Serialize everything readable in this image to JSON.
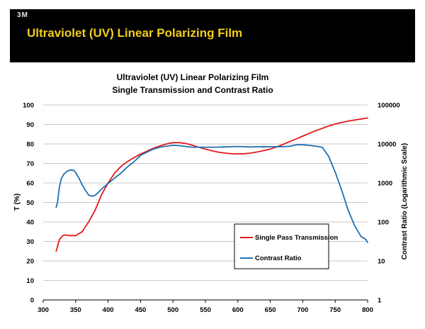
{
  "header": {
    "logo_text": "3M",
    "title": "Ultraviolet (UV) Linear Polarizing Film"
  },
  "colors": {
    "header_bg": "#000000",
    "header_title": "#f2cf1b",
    "transmission": "#e31a1c",
    "contrast": "#1f6fb2",
    "grid": "#c8c8c8"
  },
  "chart_data": {
    "type": "line",
    "title": "Ultraviolet (UV) Linear Polarizing Film",
    "subtitle": "Single Transmission and Contrast Ratio",
    "xlabel": "",
    "ylabel": "T (%)",
    "y2label": "Contrast Ratio (Logarithmic Scale)",
    "xlim": [
      300,
      800
    ],
    "ylim": [
      0,
      100
    ],
    "y2lim": [
      1,
      100000
    ],
    "y2scale": "log",
    "grid": "horizontal",
    "xticks": [
      "300",
      "350",
      "400",
      "450",
      "500",
      "550",
      "600",
      "650",
      "700",
      "750",
      "800"
    ],
    "yticks": [
      "0",
      "10",
      "20",
      "30",
      "40",
      "50",
      "60",
      "70",
      "80",
      "90",
      "100"
    ],
    "y2ticks": [
      "1",
      "10",
      "100",
      "1000",
      "10000",
      "100000"
    ],
    "legend_position": "lower-right",
    "series": [
      {
        "name": "Single Pass Transmission",
        "axis": "left",
        "color": "#e31a1c",
        "x": [
          320,
          325,
          330,
          335,
          340,
          350,
          360,
          370,
          380,
          390,
          400,
          410,
          420,
          430,
          440,
          450,
          460,
          470,
          480,
          490,
          500,
          510,
          520,
          530,
          540,
          550,
          560,
          570,
          580,
          590,
          600,
          610,
          620,
          630,
          640,
          650,
          660,
          670,
          680,
          690,
          700,
          710,
          720,
          730,
          740,
          750,
          760,
          770,
          780,
          790,
          800
        ],
        "values": [
          25,
          31,
          33,
          33.3,
          33,
          33,
          35,
          40,
          46,
          54,
          60,
          65,
          68.5,
          71,
          73,
          74.8,
          76.3,
          77.8,
          79,
          80,
          80.7,
          80.7,
          80.2,
          79.3,
          78.3,
          77.3,
          76.5,
          75.8,
          75.3,
          75,
          74.9,
          75,
          75.3,
          75.9,
          76.6,
          77.4,
          78.5,
          79.8,
          81.2,
          82.6,
          84,
          85.4,
          86.8,
          88,
          89.2,
          90.2,
          91,
          91.7,
          92.3,
          92.8,
          93.3
        ]
      },
      {
        "name": "Contrast Ratio",
        "axis": "right",
        "color": "#1f6fb2",
        "x": [
          320,
          322,
          325,
          328,
          332,
          337,
          342,
          347,
          350,
          355,
          360,
          365,
          370,
          375,
          380,
          385,
          390,
          400,
          410,
          420,
          430,
          440,
          450,
          460,
          470,
          480,
          490,
          500,
          510,
          520,
          530,
          540,
          550,
          560,
          570,
          580,
          590,
          600,
          610,
          620,
          630,
          640,
          650,
          660,
          670,
          680,
          690,
          700,
          710,
          720,
          730,
          740,
          750,
          760,
          770,
          780,
          790,
          797,
          800
        ],
        "values": [
          237,
          316,
          800,
          1300,
          1700,
          2000,
          2150,
          2100,
          1850,
          1330,
          900,
          650,
          490,
          455,
          480,
          570,
          700,
          970,
          1330,
          1800,
          2600,
          3500,
          5100,
          6200,
          7400,
          8300,
          8800,
          9200,
          9000,
          8600,
          8250,
          8250,
          8250,
          8250,
          8300,
          8400,
          8500,
          8600,
          8500,
          8350,
          8500,
          8400,
          8500,
          8500,
          8500,
          8700,
          9500,
          9500,
          9200,
          8800,
          8200,
          4800,
          1900,
          650,
          200,
          80,
          42,
          36,
          30
        ]
      }
    ]
  }
}
